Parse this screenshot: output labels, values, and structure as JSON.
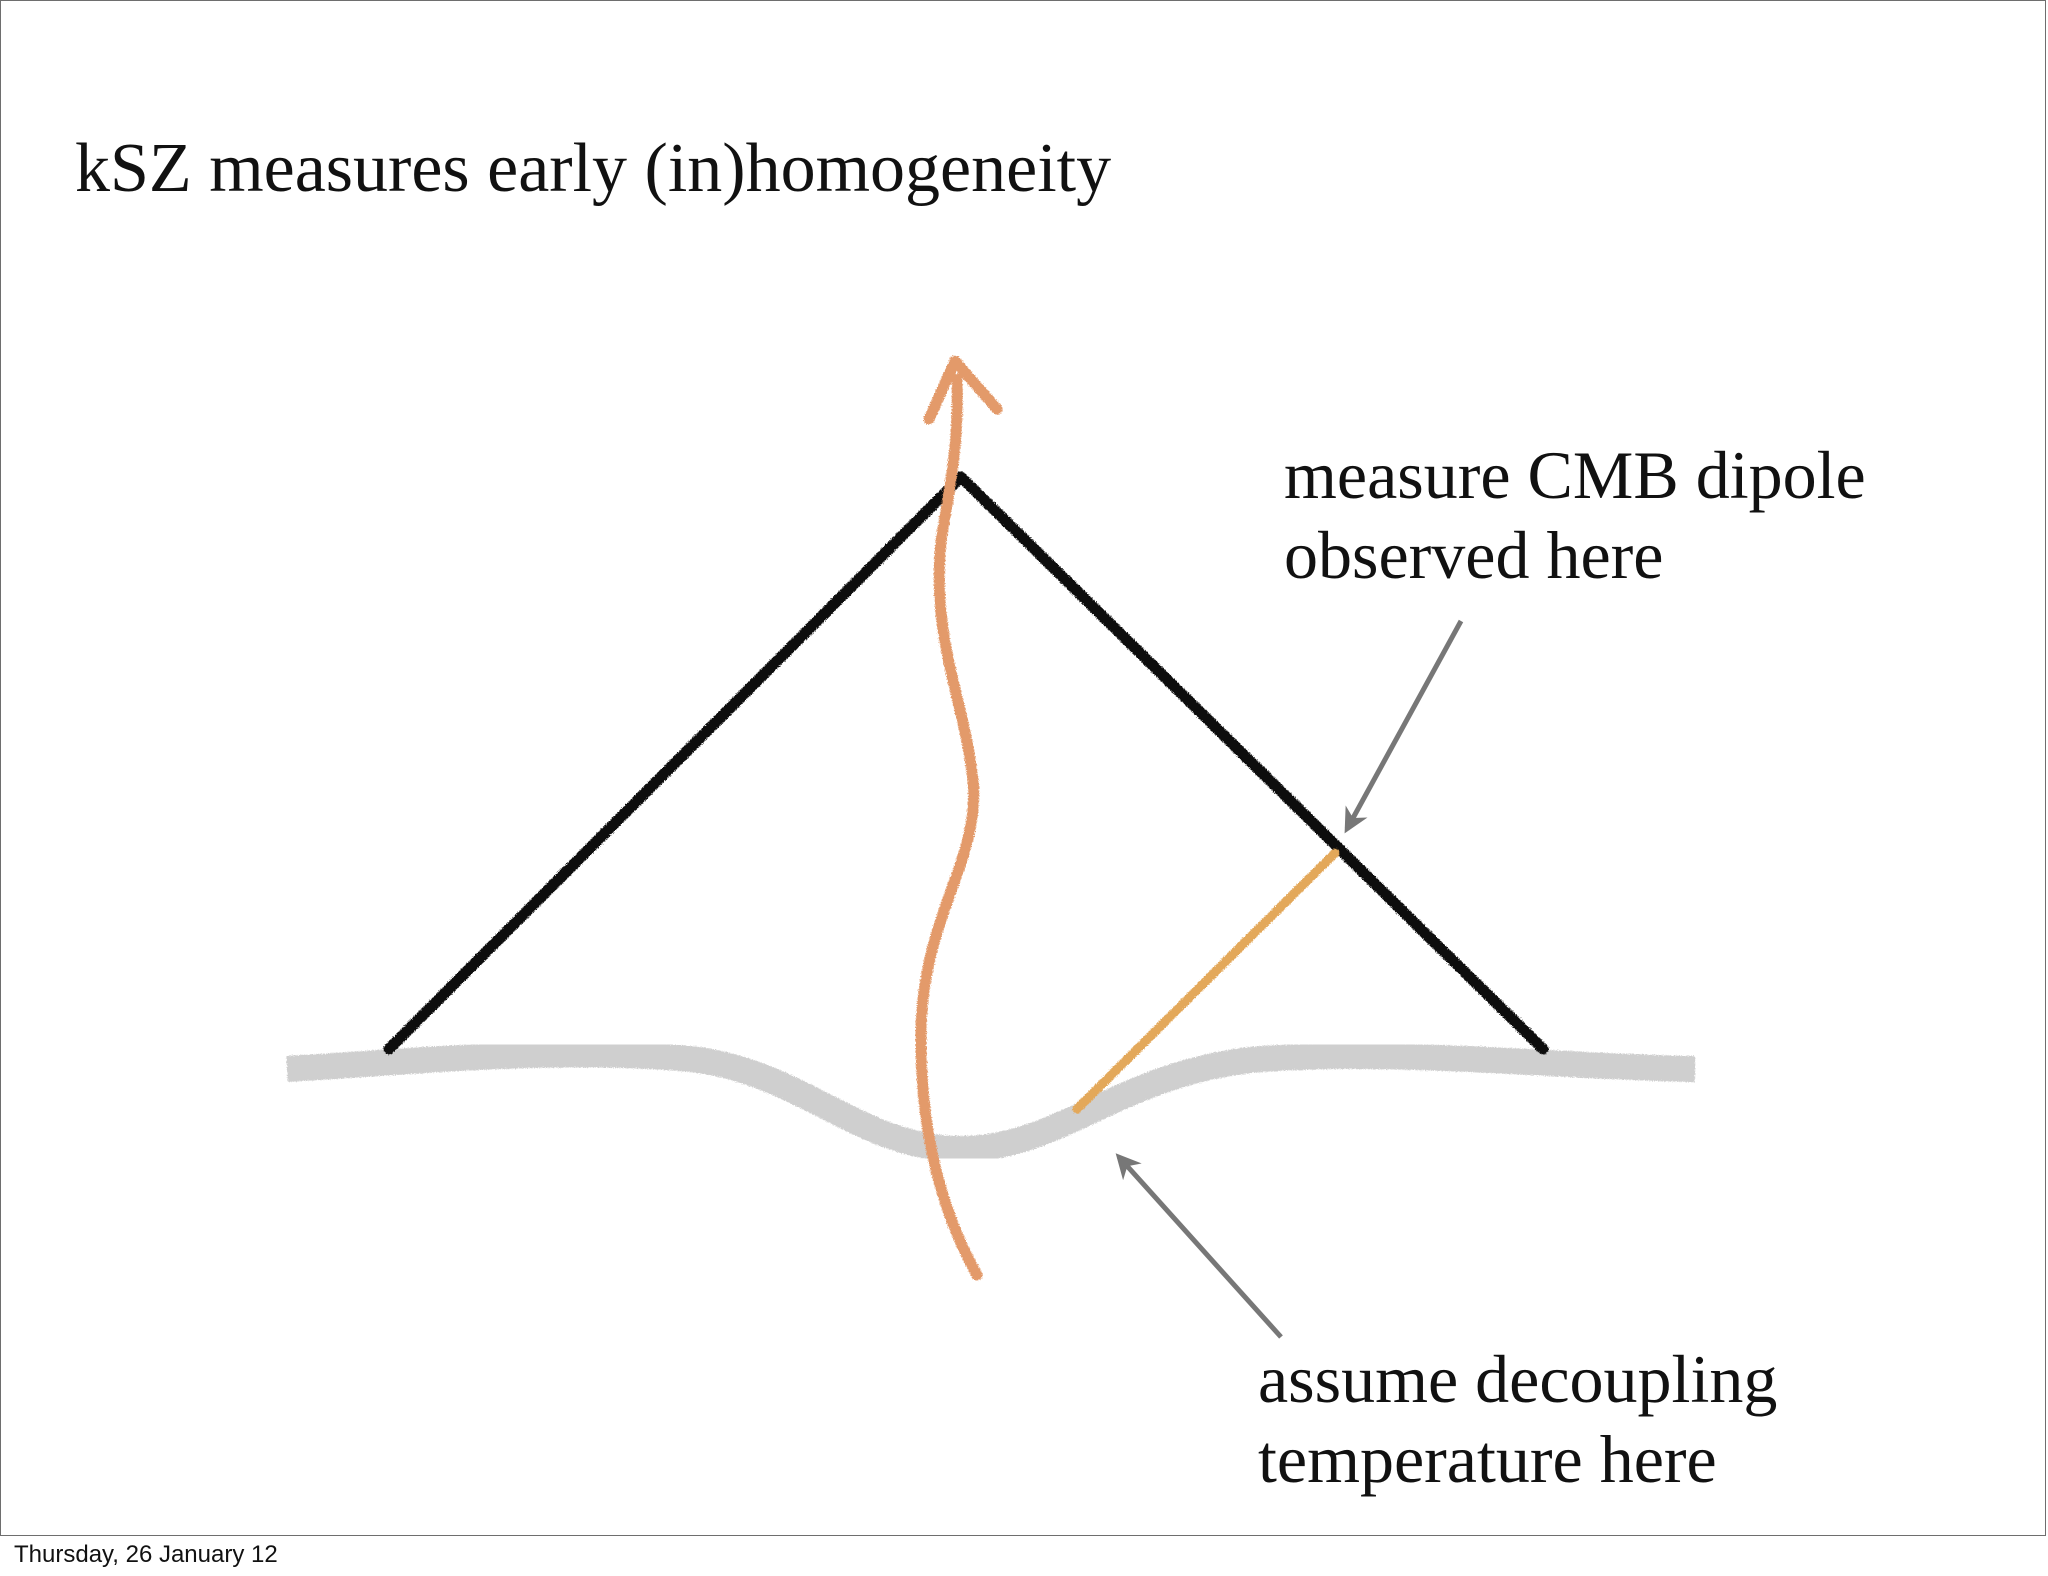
{
  "slide": {
    "title": "kSZ measures early (in)homogeneity",
    "footer_date": "Thursday, 26 January 12"
  },
  "diagram": {
    "labels": {
      "dipole_line1": "measure CMB dipole",
      "dipole_line2": "observed here",
      "decoupling_line1": "assume decoupling",
      "decoupling_line2": "temperature here"
    },
    "colors": {
      "light_cone": "#111111",
      "last_scattering_surface": "#cfcfcf",
      "observer_worldline": "#e39a6a",
      "scattered_ray": "#e3a85a",
      "annotation_arrow": "#777777"
    },
    "icons": {
      "worldline_head": "arrowhead",
      "annotation_pointer": "arrowhead"
    }
  }
}
